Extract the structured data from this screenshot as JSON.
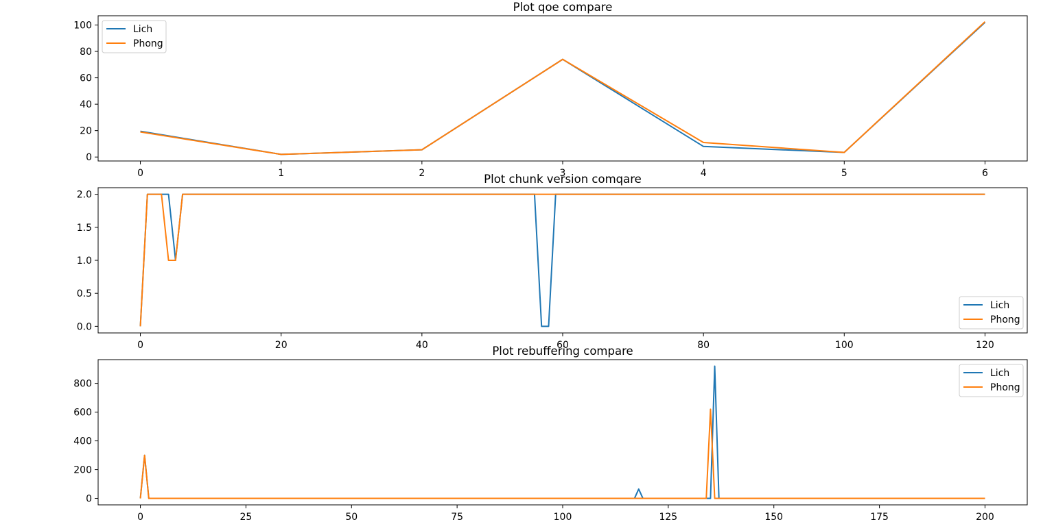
{
  "colors": {
    "lich": "#1f77b4",
    "phong": "#ff7f0e",
    "axis": "#000000",
    "legend_border": "#cccccc"
  },
  "chart_data": [
    {
      "type": "line",
      "title": "Plot qoe compare",
      "xlabel": "",
      "ylabel": "",
      "xlim": [
        -0.3,
        6.3
      ],
      "ylim": [
        -3,
        107
      ],
      "xticks": [
        0,
        1,
        2,
        3,
        4,
        5,
        6
      ],
      "yticks": [
        0,
        20,
        40,
        60,
        80,
        100
      ],
      "legend_position": "upper-left",
      "grid": false,
      "series": [
        {
          "name": "Lich",
          "color_key": "lich",
          "x": [
            0,
            1,
            2,
            3,
            4,
            5,
            6
          ],
          "y": [
            19.5,
            2,
            5.5,
            74,
            8,
            3.5,
            102
          ]
        },
        {
          "name": "Phong",
          "color_key": "phong",
          "x": [
            0,
            1,
            2,
            3,
            4,
            5,
            6
          ],
          "y": [
            19,
            2,
            5.5,
            74,
            11,
            3.5,
            102.5
          ]
        }
      ]
    },
    {
      "type": "line",
      "title": "Plot chunk version comqare",
      "xlabel": "",
      "ylabel": "",
      "xlim": [
        -6,
        126
      ],
      "ylim": [
        -0.1,
        2.1
      ],
      "xticks": [
        0,
        20,
        40,
        60,
        80,
        100,
        120
      ],
      "yticks": [
        0.0,
        0.5,
        1.0,
        1.5,
        2.0
      ],
      "ytick_labels": [
        "0.0",
        "0.5",
        "1.0",
        "1.5",
        "2.0"
      ],
      "legend_position": "lower-right",
      "grid": false,
      "series": [
        {
          "name": "Lich",
          "color_key": "lich",
          "x": [
            0,
            1,
            4,
            5,
            6,
            56,
            57,
            58,
            59,
            120
          ],
          "y": [
            0,
            2,
            2,
            1,
            2,
            2,
            0,
            0,
            2,
            2
          ]
        },
        {
          "name": "Phong",
          "color_key": "phong",
          "x": [
            0,
            1,
            3,
            4,
            5,
            6,
            120
          ],
          "y": [
            0,
            2,
            2,
            1,
            1,
            2,
            2
          ]
        }
      ]
    },
    {
      "type": "line",
      "title": "Plot rebuffering compare",
      "xlabel": "",
      "ylabel": "",
      "xlim": [
        -10,
        210
      ],
      "ylim": [
        -45,
        965
      ],
      "xticks": [
        0,
        25,
        50,
        75,
        100,
        125,
        150,
        175,
        200
      ],
      "yticks": [
        0,
        200,
        400,
        600,
        800
      ],
      "legend_position": "upper-right",
      "grid": false,
      "series": [
        {
          "name": "Lich",
          "color_key": "lich",
          "x": [
            0,
            1,
            2,
            117,
            118,
            119,
            135,
            136,
            137,
            200
          ],
          "y": [
            0,
            300,
            0,
            0,
            65,
            0,
            0,
            920,
            0,
            0
          ]
        },
        {
          "name": "Phong",
          "color_key": "phong",
          "x": [
            0,
            1,
            2,
            134,
            135,
            136,
            200
          ],
          "y": [
            0,
            300,
            0,
            0,
            620,
            0,
            0
          ]
        }
      ]
    }
  ]
}
